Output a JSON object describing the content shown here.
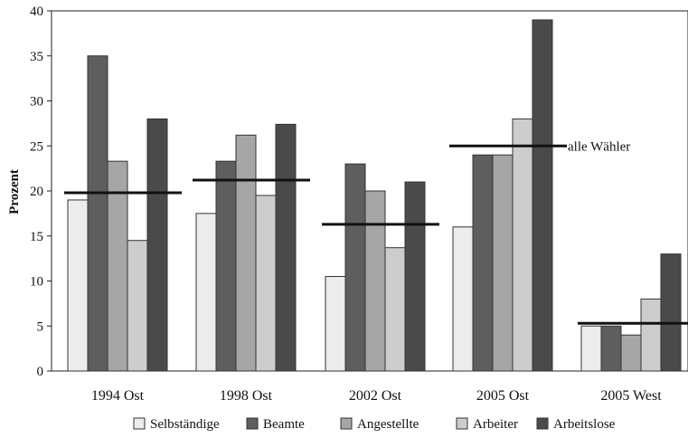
{
  "chart_data": {
    "type": "bar",
    "ylabel": "Prozent",
    "ylim": [
      0,
      40
    ],
    "yticks": [
      0,
      5,
      10,
      15,
      20,
      25,
      30,
      35,
      40
    ],
    "categories": [
      "1994 Ost",
      "1998 Ost",
      "2002 Ost",
      "2005 Ost",
      "2005 West"
    ],
    "series": [
      {
        "name": "Selbständige",
        "color": "#ececec",
        "values": [
          19,
          17.5,
          10.5,
          16,
          5
        ]
      },
      {
        "name": "Beamte",
        "color": "#5e5e5e",
        "values": [
          35,
          23.3,
          23,
          24,
          5
        ]
      },
      {
        "name": "Angestellte",
        "color": "#a6a6a6",
        "values": [
          23.3,
          26.2,
          20,
          24,
          4
        ]
      },
      {
        "name": "Arbeiter",
        "color": "#cdcdcd",
        "values": [
          14.5,
          19.5,
          13.7,
          28,
          8
        ]
      },
      {
        "name": "Arbeitslose",
        "color": "#4a4a4a",
        "values": [
          28,
          27.4,
          21,
          39,
          13
        ]
      }
    ],
    "reference_lines": [
      {
        "category": "1994 Ost",
        "value": 19.8
      },
      {
        "category": "1998 Ost",
        "value": 21.2
      },
      {
        "category": "2002 Ost",
        "value": 16.3
      },
      {
        "category": "2005 Ost",
        "value": 25
      },
      {
        "category": "2005 West",
        "value": 5.3
      }
    ],
    "annotation": "alle Wähler",
    "legend_position": "bottom",
    "grid": false
  }
}
